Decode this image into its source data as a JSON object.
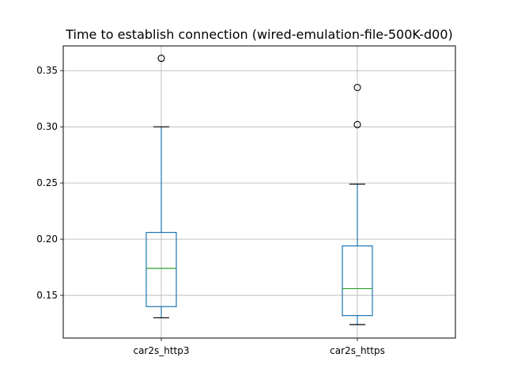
{
  "chart_data": {
    "type": "box",
    "title": "Time to establish connection (wired-emulation-file-500K-d00)",
    "xlabel": "",
    "ylabel": "",
    "ylim": [
      0.112,
      0.372
    ],
    "yticks": [
      0.15,
      0.2,
      0.25,
      0.3,
      0.35
    ],
    "ytick_labels": [
      "0.15",
      "0.20",
      "0.25",
      "0.30",
      "0.35"
    ],
    "grid": true,
    "categories": [
      "car2s_http3",
      "car2s_https"
    ],
    "boxes": [
      {
        "category": "car2s_http3",
        "whisker_low": 0.13,
        "q1": 0.14,
        "median": 0.174,
        "q3": 0.206,
        "whisker_high": 0.3,
        "outliers": [
          0.361
        ]
      },
      {
        "category": "car2s_https",
        "whisker_low": 0.124,
        "q1": 0.132,
        "median": 0.156,
        "q3": 0.194,
        "whisker_high": 0.249,
        "outliers": [
          0.302,
          0.335
        ]
      }
    ],
    "colors": {
      "box": "#1f77b4",
      "median": "#2ca02c",
      "whisker": "#1f77b4",
      "cap": "#000000",
      "grid": "#b0b0b0"
    }
  }
}
